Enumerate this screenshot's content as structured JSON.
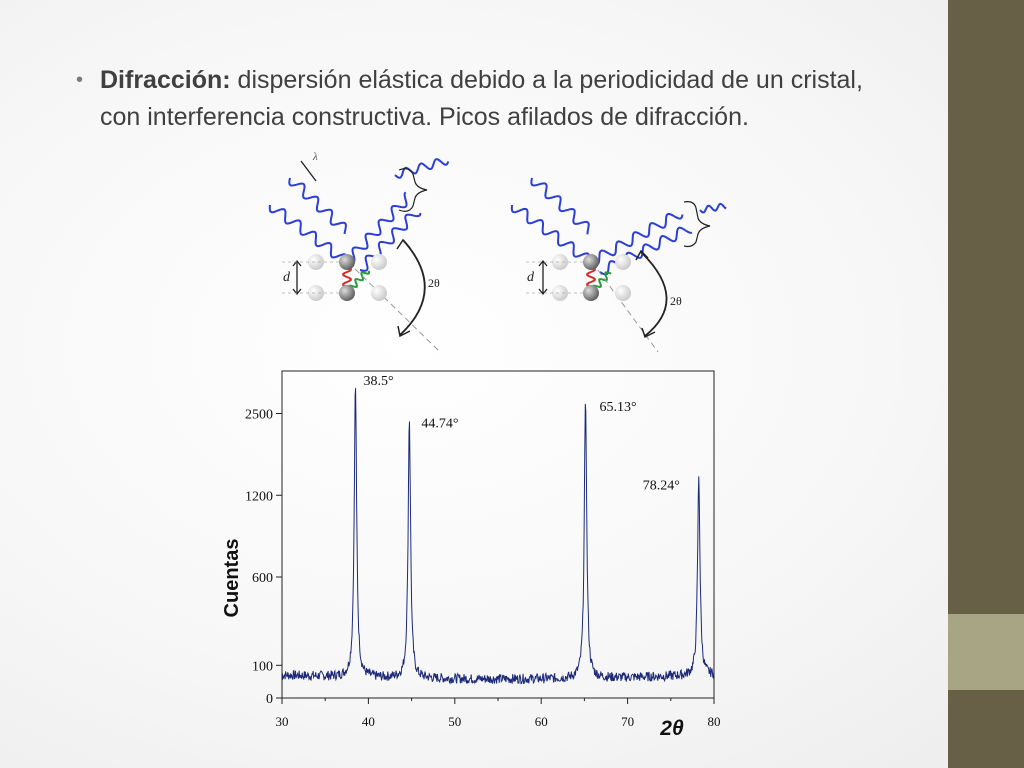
{
  "slide": {
    "bullet_term": "Difracción:",
    "bullet_body": " dispersión elástica debido a la periodicidad de un cristal, con interferencia constructiva. Picos afilados de difracción."
  },
  "diagram": {
    "d_label": "d",
    "lambda_label": "λ",
    "angle_label": "2θ"
  },
  "chart_data": {
    "type": "line",
    "xlabel": "2θ",
    "ylabel": "Cuentas",
    "x_ticks": [
      "30",
      "40",
      "50",
      "60",
      "70",
      "80"
    ],
    "y_ticks": [
      "0",
      "100",
      "600",
      "1200",
      "2500"
    ],
    "xlim": [
      30,
      80
    ],
    "peaks": [
      {
        "label": "38.5°",
        "x": 38.5
      },
      {
        "label": "44.74°",
        "x": 44.74
      },
      {
        "label": "65.13°",
        "x": 65.13
      },
      {
        "label": "78.24°",
        "x": 78.24
      }
    ],
    "peak_heights_rel": [
      0.97,
      0.87,
      0.92,
      0.68
    ],
    "background_rel": 0.07
  }
}
